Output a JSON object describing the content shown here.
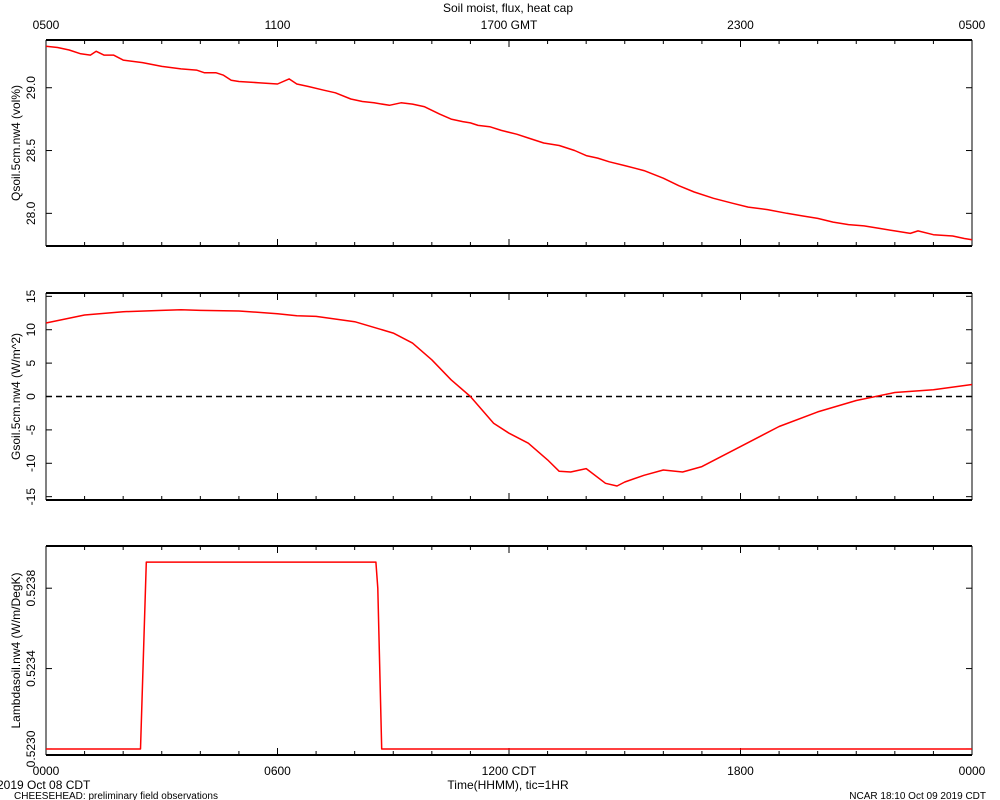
{
  "title": "Soil moist, flux, heat cap",
  "top_axis_ticks": [
    "0500",
    "1100",
    "1700 GMT",
    "2300",
    "0500"
  ],
  "bottom_axis_ticks": [
    "0000",
    "0600",
    "1200 CDT",
    "1800",
    "0000"
  ],
  "x_axis_label": "Time(HHMM), tic=1HR",
  "date_label": "2019 Oct 08 CDT",
  "footer_left": "CHEESEHEAD: preliminary field observations",
  "footer_right": "NCAR 18:10 Oct 09 2019 CDT",
  "colors": {
    "series": "#ff0000",
    "axes": "#000000",
    "zero_line": "#000000"
  },
  "chart_data": [
    {
      "type": "line",
      "ylabel": "Qsoil.5cm.nw4 (vol%)",
      "xlim": [
        0,
        24
      ],
      "ylim": [
        27.74,
        29.38
      ],
      "yticks": [
        28.0,
        28.5,
        29.0
      ],
      "ytick_labels": [
        "28.0",
        "28.5",
        "29.0"
      ],
      "series": [
        {
          "x": [
            0,
            0.3,
            0.6,
            0.9,
            1.15,
            1.3,
            1.5,
            1.75,
            2.0,
            2.5,
            3.0,
            3.5,
            3.9,
            4.1,
            4.4,
            4.6,
            4.8,
            5.0,
            5.5,
            6.0,
            6.3,
            6.5,
            6.8,
            7.2,
            7.5,
            7.9,
            8.2,
            8.5,
            8.9,
            9.2,
            9.5,
            9.8,
            10.2,
            10.5,
            10.8,
            11.0,
            11.2,
            11.5,
            11.8,
            12.2,
            12.5,
            12.9,
            13.3,
            13.7,
            14.0,
            14.3,
            14.6,
            15.0,
            15.5,
            16.0,
            16.4,
            16.8,
            17.3,
            17.8,
            18.2,
            18.7,
            19.2,
            19.6,
            20.0,
            20.4,
            20.8,
            21.2,
            21.6,
            22.0,
            22.4,
            22.6,
            23.0,
            23.5,
            23.8,
            24.0
          ],
          "y": [
            29.33,
            29.32,
            29.3,
            29.27,
            29.26,
            29.29,
            29.26,
            29.26,
            29.22,
            29.2,
            29.17,
            29.15,
            29.14,
            29.12,
            29.12,
            29.1,
            29.06,
            29.05,
            29.04,
            29.03,
            29.07,
            29.03,
            29.01,
            28.98,
            28.96,
            28.91,
            28.89,
            28.88,
            28.86,
            28.88,
            28.87,
            28.85,
            28.79,
            28.75,
            28.73,
            28.72,
            28.7,
            28.69,
            28.66,
            28.63,
            28.6,
            28.56,
            28.54,
            28.5,
            28.46,
            28.44,
            28.41,
            28.38,
            28.34,
            28.28,
            28.22,
            28.17,
            28.12,
            28.08,
            28.05,
            28.03,
            28.0,
            27.98,
            27.96,
            27.93,
            27.91,
            27.9,
            27.88,
            27.86,
            27.84,
            27.86,
            27.83,
            27.82,
            27.8,
            27.79
          ]
        }
      ]
    },
    {
      "type": "line",
      "ylabel": "Gsoil.5cm.nw4 (W/m^2)",
      "xlim": [
        0,
        24
      ],
      "ylim": [
        -15.5,
        15.5
      ],
      "yticks": [
        -15,
        -10,
        -5,
        0,
        5,
        10,
        15
      ],
      "ytick_labels": [
        "-15",
        "-10",
        "-5",
        "0",
        "5",
        "10",
        "15"
      ],
      "zero_line": 0,
      "series": [
        {
          "x": [
            0,
            1,
            2,
            3,
            3.5,
            4,
            5,
            6,
            6.5,
            7,
            8,
            9,
            9.5,
            10,
            10.5,
            11,
            11.3,
            11.6,
            12,
            12.5,
            13,
            13.3,
            13.6,
            14,
            14.5,
            14.8,
            15,
            15.5,
            16,
            16.5,
            17,
            17.5,
            18,
            19,
            20,
            21,
            22,
            23,
            24
          ],
          "y": [
            11.0,
            12.2,
            12.7,
            12.9,
            13.0,
            12.9,
            12.8,
            12.4,
            12.1,
            12.0,
            11.2,
            9.5,
            8.0,
            5.5,
            2.5,
            0.0,
            -2.0,
            -4.0,
            -5.5,
            -7.0,
            -9.5,
            -11.2,
            -11.3,
            -10.8,
            -13.0,
            -13.4,
            -12.8,
            -11.8,
            -11.0,
            -11.3,
            -10.5,
            -9.0,
            -7.5,
            -4.5,
            -2.3,
            -0.6,
            0.6,
            1.0,
            1.8
          ]
        }
      ]
    },
    {
      "type": "line",
      "ylabel": "Lambdasoil.nw4 (W/m/DegK)",
      "xlim": [
        0,
        24
      ],
      "ylim": [
        0.52297,
        0.52401
      ],
      "yticks": [
        0.523,
        0.5234,
        0.5238
      ],
      "ytick_labels": [
        "0.5230",
        "0.5234",
        "0.5238"
      ],
      "series": [
        {
          "x": [
            0,
            2.45,
            2.6,
            8.55,
            8.6,
            8.7,
            24
          ],
          "y": [
            0.523,
            0.523,
            0.52393,
            0.52393,
            0.5238,
            0.523,
            0.523
          ]
        }
      ]
    }
  ]
}
